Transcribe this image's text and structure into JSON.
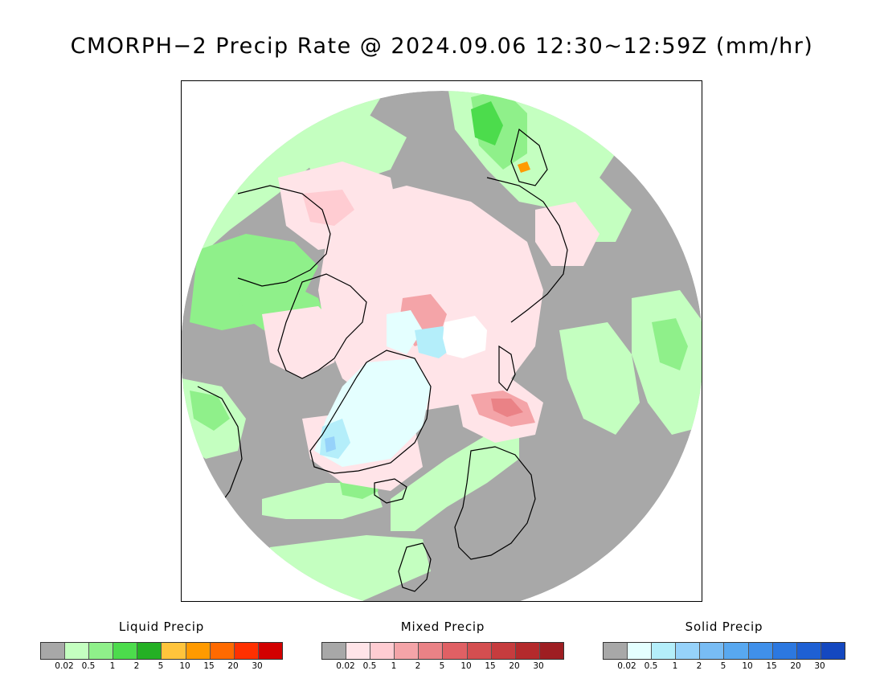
{
  "title": "CMORPH−2 Precip Rate @ 2024.09.06 12:30~12:59Z (mm/hr)",
  "map": {
    "projection": "polar-stereographic-north",
    "colors": {
      "no_precip": "#a8a8a8",
      "land_outline": "#000000",
      "frame": "#000000",
      "pole_hole": "#ffffff"
    }
  },
  "legends": [
    {
      "key": "liquid",
      "title": "Liquid Precip",
      "colors": [
        "#a8a8a8",
        "#c4ffc0",
        "#8ff08a",
        "#4cdc4c",
        "#24b024",
        "#ffc43c",
        "#ff9a00",
        "#ff6a00",
        "#ff3000",
        "#d20000"
      ],
      "ticks": [
        "0.02",
        "0.5",
        "1",
        "2",
        "5",
        "10",
        "15",
        "20",
        "30"
      ]
    },
    {
      "key": "mixed",
      "title": "Mixed Precip",
      "colors": [
        "#a8a8a8",
        "#ffe4e8",
        "#ffccd2",
        "#f4a4a8",
        "#ea8286",
        "#e06064",
        "#d44e50",
        "#c63c3e",
        "#b42a2c",
        "#9e1e22"
      ],
      "ticks": [
        "0.02",
        "0.5",
        "1",
        "2",
        "5",
        "10",
        "15",
        "20",
        "30"
      ]
    },
    {
      "key": "solid",
      "title": "Solid Precip",
      "colors": [
        "#a8a8a8",
        "#e4ffff",
        "#b4eefa",
        "#96d2fa",
        "#78bcf4",
        "#58a8f0",
        "#4090ea",
        "#2c78e0",
        "#1e60d4",
        "#1448c0"
      ],
      "ticks": [
        "0.02",
        "0.5",
        "1",
        "2",
        "5",
        "10",
        "15",
        "20",
        "30"
      ]
    }
  ]
}
